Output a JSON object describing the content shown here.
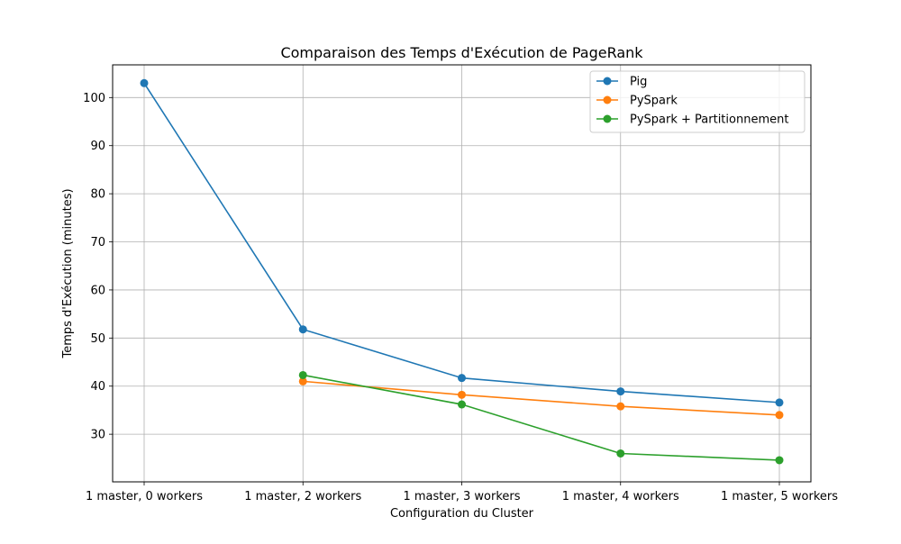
{
  "chart_data": {
    "type": "line",
    "title": "Comparaison des Temps d'Exécution de PageRank",
    "xlabel": "Configuration du Cluster",
    "ylabel": "Temps d'Exécution (minutes)",
    "categories": [
      "1 master, 0 workers",
      "1 master, 2 workers",
      "1 master, 3 workers",
      "1 master, 4 workers",
      "1 master, 5 workers"
    ],
    "ylim": [
      20.1,
      106.8
    ],
    "yticks": [
      30,
      40,
      50,
      60,
      70,
      80,
      90,
      100
    ],
    "grid": true,
    "legend_position": "top-right",
    "series": [
      {
        "name": "Pig",
        "color": "#1f77b4",
        "values": [
          103.0,
          51.8,
          41.7,
          38.9,
          36.6
        ]
      },
      {
        "name": "PySpark",
        "color": "#ff7f0e",
        "values": [
          null,
          41.0,
          38.2,
          35.8,
          34.0
        ]
      },
      {
        "name": "PySpark + Partitionnement",
        "color": "#2ca02c",
        "values": [
          null,
          42.3,
          36.2,
          26.0,
          24.6
        ]
      }
    ]
  }
}
